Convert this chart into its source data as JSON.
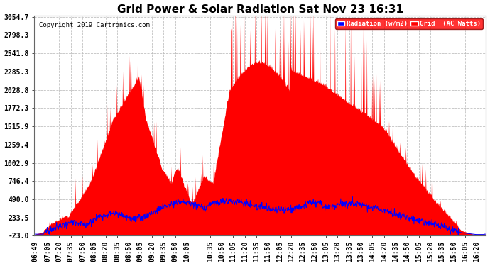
{
  "title": "Grid Power & Solar Radiation Sat Nov 23 16:31",
  "copyright": "Copyright 2019 Cartronics.com",
  "background_color": "#ffffff",
  "plot_bg_color": "#ffffff",
  "grid_color": "#bbbbbb",
  "yticks": [
    -23.0,
    233.5,
    490.0,
    746.4,
    1002.9,
    1259.4,
    1515.9,
    1772.3,
    2028.8,
    2285.3,
    2541.8,
    2798.3,
    3054.7
  ],
  "ymin": -23.0,
  "ymax": 3054.7,
  "legend_labels": [
    "Radiation (w/m2)",
    "Grid  (AC Watts)"
  ],
  "legend_colors": [
    "#0000ff",
    "#ff0000"
  ],
  "title_fontsize": 11,
  "axis_fontsize": 7,
  "xtick_labels": [
    "06:49",
    "07:05",
    "07:20",
    "07:35",
    "07:50",
    "08:05",
    "08:20",
    "08:35",
    "08:50",
    "09:05",
    "09:20",
    "09:35",
    "09:50",
    "10:05",
    "10:35",
    "10:50",
    "11:05",
    "11:20",
    "11:35",
    "11:50",
    "12:05",
    "12:20",
    "12:35",
    "12:50",
    "13:05",
    "13:20",
    "13:35",
    "13:50",
    "14:05",
    "14:20",
    "14:35",
    "14:50",
    "15:05",
    "15:20",
    "15:35",
    "15:50",
    "16:05",
    "16:20"
  ]
}
